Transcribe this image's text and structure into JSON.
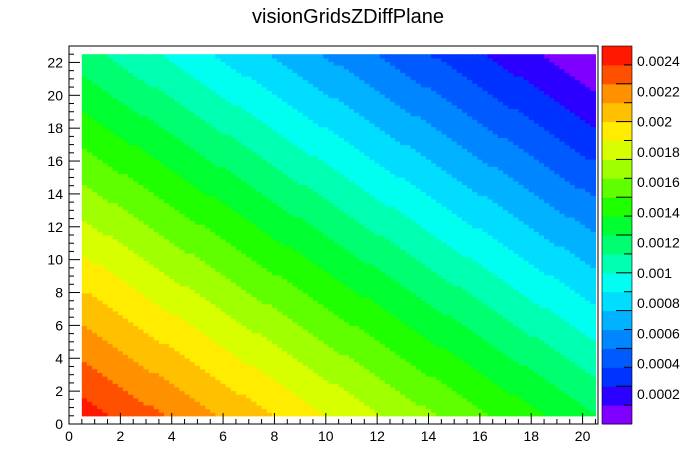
{
  "chart_data": {
    "type": "heatmap",
    "title": "visionGridsZDiffPlane",
    "xlabel": "",
    "ylabel": "",
    "xlim": [
      0,
      20.6
    ],
    "ylim": [
      0,
      23
    ],
    "data_extent": {
      "x": [
        0.5,
        20.5
      ],
      "y": [
        0.5,
        22.5
      ]
    },
    "x_ticks": [
      0,
      2,
      4,
      6,
      8,
      10,
      12,
      14,
      16,
      18,
      20
    ],
    "y_ticks": [
      0,
      2,
      4,
      6,
      8,
      10,
      12,
      14,
      16,
      18,
      20,
      22
    ],
    "z_range": [
      0,
      0.0025
    ],
    "z_step": 0.000125,
    "colorbar": {
      "levels": 20,
      "tick_values": [
        0.0002,
        0.0004,
        0.0006,
        0.0008,
        0.001,
        0.0012,
        0.0014,
        0.0016,
        0.0018,
        0.002,
        0.0022,
        0.0024
      ],
      "tick_labels": [
        "0.0002",
        "0.0004",
        "0.0006",
        "0.0008",
        "0.001",
        "0.0012",
        "0.0014",
        "0.0016",
        "0.0018",
        "0.002",
        "0.0022",
        "0.0024"
      ],
      "colors": [
        "#8000ff",
        "#2c00ff",
        "#0033ff",
        "#005bff",
        "#0087ff",
        "#00b2ff",
        "#00ddff",
        "#00fff0",
        "#00ffb0",
        "#00ff70",
        "#00ff30",
        "#20ff00",
        "#60ff00",
        "#a0ff00",
        "#d8ff00",
        "#ffec00",
        "#ffc000",
        "#ff9000",
        "#ff5000",
        "#ff1800"
      ]
    },
    "field_model": {
      "description_units": "z",
      "z_at_origin": 0.0025,
      "dz_dx": -5.9e-05,
      "dz_dy": -5.75e-05
    },
    "grid": false,
    "legend": "colorbar-right"
  }
}
